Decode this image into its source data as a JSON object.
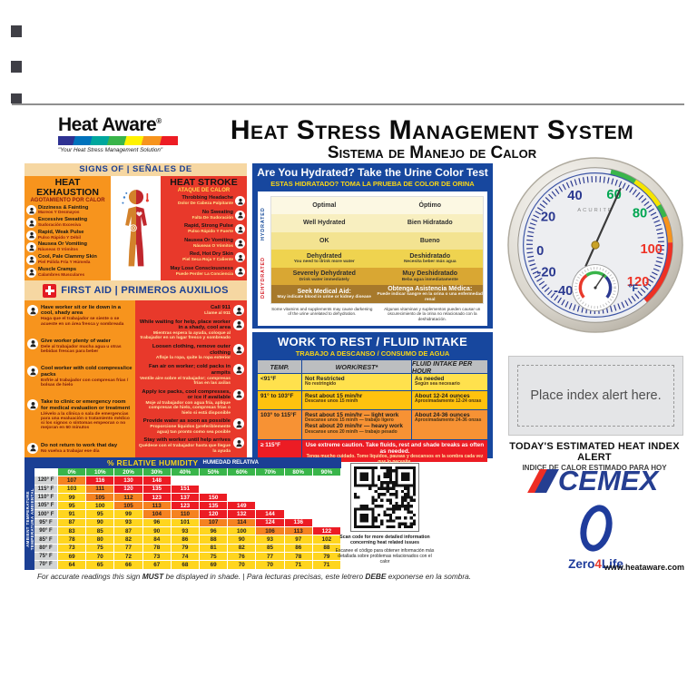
{
  "palette": {
    "navy": "#17479E",
    "title_navy": "#1B3F94",
    "tan": "#F6D7A2",
    "orange_panel": "#F7941D",
    "red_panel": "#E8392B",
    "yellow_row": "#FFE14D",
    "gold_row": "#FFC20E",
    "orange_row": "#F79234",
    "red_row": "#EC1C24",
    "green": "#39B54A",
    "yellow_text": "#F9D616"
  },
  "header": {
    "logo_name": "Heat Aware",
    "logo_reg": "®",
    "logo_tagline": "\"Your Heat Stress Management Solution\"",
    "title_en": "Heat Stress Management System",
    "title_es": "Sistema de Manejo de Calor"
  },
  "signs": {
    "header": "SIGNS OF | SEÑALES DE",
    "exhaustion_title_en": "HEAT EXHAUSTION",
    "exhaustion_title_es": "AGOTAMIENTO POR CALOR",
    "stroke_title_en": "HEAT STROKE",
    "stroke_title_es": "ATAQUE DE CALOR",
    "exhaustion_items": [
      {
        "en": "Dizziness & Fainting",
        "es": "Mareos Y Desmayos",
        "icon": "dizziness-icon"
      },
      {
        "en": "Excessive Sweating",
        "es": "Sudoración Excesiva",
        "icon": "sweating-icon"
      },
      {
        "en": "Rapid, Weak Pulse",
        "es": "Pulso Rápido Y Débil",
        "icon": "weak-pulse-icon"
      },
      {
        "en": "Nausea Or Vomiting",
        "es": "Náuseas O Vómitos",
        "icon": "nausea-icon"
      },
      {
        "en": "Cool, Pale Clammy Skin",
        "es": "Piel Pálida Fría Y Húmeda",
        "icon": "clammy-skin-icon"
      },
      {
        "en": "Muscle Cramps",
        "es": "Calambres Musculares",
        "icon": "muscle-cramps-icon"
      }
    ],
    "stroke_items": [
      {
        "en": "Throbbing Headache",
        "es": "Dolor De Cabeza Palpitante",
        "icon": "headache-icon"
      },
      {
        "en": "No Sweating",
        "es": "Falta De Sudoración",
        "icon": "no-sweating-icon"
      },
      {
        "en": "Rapid, Strong Pulse",
        "es": "Pulso Rápido Y Fuerte",
        "icon": "strong-pulse-icon"
      },
      {
        "en": "Nausea Or Vomiting",
        "es": "Náuseas O Vómitos",
        "icon": "nausea-icon"
      },
      {
        "en": "Red, Hot Dry Skin",
        "es": "Piel Seca Roja Y Caliente",
        "icon": "hot-dry-skin-icon"
      },
      {
        "en": "May Lose Consciousness",
        "es": "Puede Perder La Conciencia",
        "icon": "consciousness-icon"
      }
    ]
  },
  "first_aid": {
    "header": "FIRST AID | PRIMEROS AUXILIOS",
    "exhaustion_steps": [
      {
        "en": "Have worker sit or lie down in a cool, shady area",
        "es": "Haga que el trabajador se siente o se acueste en un área fresca y sombreada",
        "icon": "rest-in-shade-icon"
      },
      {
        "en": "Give worker plenty of water",
        "es": "Dele al trabajador mucha agua u otras bebidas frescas para beber",
        "icon": "drink-water-icon"
      },
      {
        "en": "Cool worker with cold compress/ice packs",
        "es": "Enfríe al trabajador con compresas frías / bolsas de hielo",
        "icon": "cold-compress-icon"
      },
      {
        "en": "Take to clinic or emergency room for medical evaluation or treatment",
        "es": "Llévelo a la clínica o sala de emergencias para una evaluación o tratamiento médico si los signos o síntomas empeoran o no mejoran en 60 minutos",
        "icon": "medical-care-icon"
      },
      {
        "en": "Do not return to work that day",
        "es": "No vuelva a trabajar ese día",
        "icon": "no-return-to-work-icon"
      }
    ],
    "stroke_steps": [
      {
        "en": "Call 911",
        "es": "Llame al 911",
        "icon": "call-911-icon"
      },
      {
        "en": "While waiting for help, place worker in a shady, cool area",
        "es": "Mientras espera la ayuda, coloque al trabajador en un lugar fresco y sombreado",
        "icon": "move-to-shade-icon"
      },
      {
        "en": "Loosen clothing, remove outer clothing",
        "es": "Afloje la ropa, quite la ropa exterior",
        "icon": "loosen-clothing-icon"
      },
      {
        "en": "Fan air on worker; cold packs in armpits",
        "es": "Ventile aire sobre el trabajador; compresas frías en las axilas",
        "icon": "fan-air-icon"
      },
      {
        "en": "Apply ice packs, cool compresses, or ice if available",
        "es": "Moje al trabajador con agua fría, aplique compresas de hielo, compresas frías o hielo si está disponible",
        "icon": "ice-packs-icon"
      },
      {
        "en": "Provide water as soon as possible",
        "es": "Proporcione líquidos (preferiblemente agua) tan pronto como sea posible",
        "icon": "provide-water-icon"
      },
      {
        "en": "Stay with worker until help arrives",
        "es": "Quédese con el trabajador hasta que llegue la ayuda",
        "icon": "stay-with-worker-icon"
      }
    ]
  },
  "hydration": {
    "title_en": "Are You Hydrated? Take the Urine Color Test",
    "title_es": "ESTAS HIDRATADO? TOMA LA PRUEBA DE COLOR DE ORINA",
    "side_hydrated": "HYDRATED",
    "side_dehydrated": "DEHYDRATED",
    "levels": [
      {
        "en": "Optimal",
        "es": "Óptimo",
        "sub_en": "",
        "sub_es": "",
        "color": "#FCF8E3"
      },
      {
        "en": "Well Hydrated",
        "es": "Bien Hidratado",
        "sub_en": "",
        "sub_es": "",
        "color": "#F8EFC0"
      },
      {
        "en": "OK",
        "es": "Bueno",
        "sub_en": "",
        "sub_es": "",
        "color": "#F3E391"
      },
      {
        "en": "Dehydrated",
        "es": "Deshidratado",
        "sub_en": "You need to drink more water",
        "sub_es": "Necesita beber más agua",
        "color": "#EFD34F"
      },
      {
        "en": "Severely Dehydrated",
        "es": "Muy Deshidratado",
        "sub_en": "Drink water immediately",
        "sub_es": "Beba agua inmediatamente",
        "color": "#D9A733"
      },
      {
        "en": "Seek Medical Aid:",
        "es": "Obtenga Asistencia Médica:",
        "sub_en": "May indicate blood in urine or kidney disease",
        "sub_es": "Puede indicar sangre en la orina o una enfermedad renal",
        "color": "#A7792B",
        "fg": "#ffffff"
      }
    ],
    "note_en": "Some vitamins and supplements may cause darkening of the urine unrelated to dehydration.",
    "note_es": "Algunas vitaminas y suplementos pueden causar un oscurecimiento de la orina no relacionado con la deshidratación."
  },
  "work_rest": {
    "title_en": "WORK TO REST / FLUID INTAKE",
    "title_es": "TRABAJO A DESCANSO / CONSUMO DE AGUA",
    "col_temp": "TEMP.",
    "col_work": "WORK/REST*",
    "col_fluid": "FLUID INTAKE PER HOUR",
    "r1_temp": "<91°F",
    "r1_work_en": "Not Restricted",
    "r1_work_es": "No restringido",
    "r1_fluid_en": "As needed",
    "r1_fluid_es": "Según sea necesario",
    "r2_temp": "91° to 103°F",
    "r2_work_en": "Rest about 15 min/hr",
    "r2_work_es": "Descanse unos 15 min/h",
    "r2_fluid_en": "About 12-24 ounces",
    "r2_fluid_es": "Aproximadamente 12-24 onzas",
    "r3_temp": "103° to 115°F",
    "r3_work1_en": "Rest about 15 min/hr — light work",
    "r3_work1_es": "Descanse unos 15 min/h — trabajo ligero",
    "r3_work2_en": "Rest about 20 min/hr — heavy work",
    "r3_work2_es": "Descanse unos 20 min/h — trabajo pesado",
    "r3_fluid_en": "About 24-36 ounces",
    "r3_fluid_es": "Aproximadamente 24-36 onzas",
    "r4_temp": "≥ 115°F",
    "r4_text_en": "Use extreme caution. Take fluids, rest and shade breaks as often as needed.",
    "r4_text_es": "Tenga mucho cuidado. Tome líquidos, pausas y descansos en la sombra cada vez que lo necesite."
  },
  "heat_index": {
    "title_en": "% RELATIVE HUMIDITY",
    "title_es": "HUMEDAD RELATIVA",
    "side_en": "AMBIENT TEMPERATURE",
    "side_es": "TEMPERATURA AMBIENTAL",
    "humidity": [
      "0%",
      "10%",
      "20%",
      "30%",
      "40%",
      "50%",
      "60%",
      "70%",
      "80%",
      "90%"
    ],
    "rows": [
      {
        "temp": "120° F",
        "values": [
          107,
          116,
          130,
          148
        ]
      },
      {
        "temp": "115° F",
        "values": [
          103,
          111,
          120,
          135,
          151
        ]
      },
      {
        "temp": "110° F",
        "values": [
          99,
          105,
          112,
          123,
          137,
          150
        ]
      },
      {
        "temp": "105° F",
        "values": [
          95,
          100,
          105,
          113,
          123,
          135,
          149
        ]
      },
      {
        "temp": "100° F",
        "values": [
          91,
          95,
          99,
          104,
          110,
          120,
          132,
          144
        ]
      },
      {
        "temp": "95° F",
        "values": [
          87,
          90,
          93,
          96,
          101,
          107,
          114,
          124,
          136
        ]
      },
      {
        "temp": "90° F",
        "values": [
          83,
          85,
          87,
          90,
          93,
          96,
          100,
          106,
          113,
          122
        ]
      },
      {
        "temp": "85° F",
        "values": [
          78,
          80,
          82,
          84,
          86,
          88,
          90,
          93,
          97,
          102
        ]
      },
      {
        "temp": "80° F",
        "values": [
          73,
          75,
          77,
          78,
          79,
          81,
          82,
          85,
          86,
          88
        ]
      },
      {
        "temp": "75° F",
        "values": [
          69,
          70,
          72,
          73,
          74,
          75,
          76,
          77,
          78,
          79
        ]
      },
      {
        "temp": "70° F",
        "values": [
          64,
          65,
          66,
          67,
          68,
          69,
          70,
          70,
          71,
          71
        ]
      }
    ],
    "colors": {
      "yellow": "#FFD51E",
      "orange": "#F58220",
      "red": "#EC1C24"
    }
  },
  "thermometer": {
    "brand": "ACURITE",
    "unit": "°F",
    "numbers": [
      "-40",
      "-20",
      "0",
      "20",
      "40",
      "60",
      "80",
      "100",
      "120"
    ]
  },
  "alert": {
    "placeholder": "Place index alert here.",
    "title_en": "TODAY'S ESTIMATED HEAT INDEX ALERT",
    "title_es": "INDICE DE CALOR ESTIMADO PARA HOY"
  },
  "brands": {
    "cemex": "CEMEX",
    "zero": "Zero",
    "four": "4",
    "life": "Life",
    "website": "www.heataware.com"
  },
  "qr": {
    "caption_en": "Scan code for more detailed information concerning heat related issues",
    "caption_es": "Escanee el código para obtener información más detallada sobre problemas relacionados con el calor"
  },
  "footer": {
    "p1": "For accurate readings this sign ",
    "b1": "MUST",
    "p2": " be displayed in shade.  |  Para lecturas precisas, este letrero ",
    "b2": "DEBE",
    "p3": " exponerse en la sombra."
  }
}
